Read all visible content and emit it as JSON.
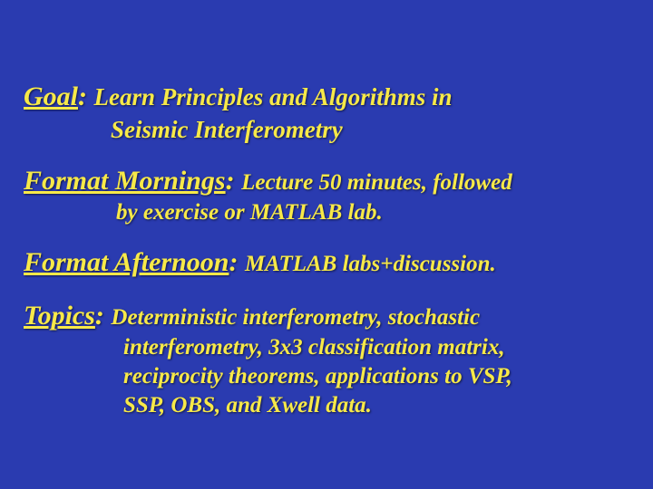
{
  "background_color": "#2a3bb0",
  "text_color": "#f7e948",
  "font_family": "Times New Roman",
  "font_style": "italic-bold",
  "label_fontsize": 30,
  "body_lg_fontsize": 27,
  "body_fontsize": 25,
  "goal": {
    "label": "Goal",
    "colon": ": ",
    "line1": "Learn Principles and Algorithms in",
    "line2": "Seismic  Interferometry"
  },
  "mornings": {
    "label": "Format Mornings",
    "colon": ": ",
    "line1": "Lecture 50 minutes, followed",
    "line2": "by exercise or MATLAB lab."
  },
  "afternoon": {
    "label": "Format Afternoon",
    "colon": ": ",
    "line1": "MATLAB labs+discussion."
  },
  "topics": {
    "label": "Topics",
    "colon": ": ",
    "line1": "Deterministic interferometry, stochastic",
    "line2": "interferometry, 3x3 classification matrix,",
    "line3": "reciprocity theorems, applications to VSP,",
    "line4": "SSP, OBS, and Xwell data."
  }
}
